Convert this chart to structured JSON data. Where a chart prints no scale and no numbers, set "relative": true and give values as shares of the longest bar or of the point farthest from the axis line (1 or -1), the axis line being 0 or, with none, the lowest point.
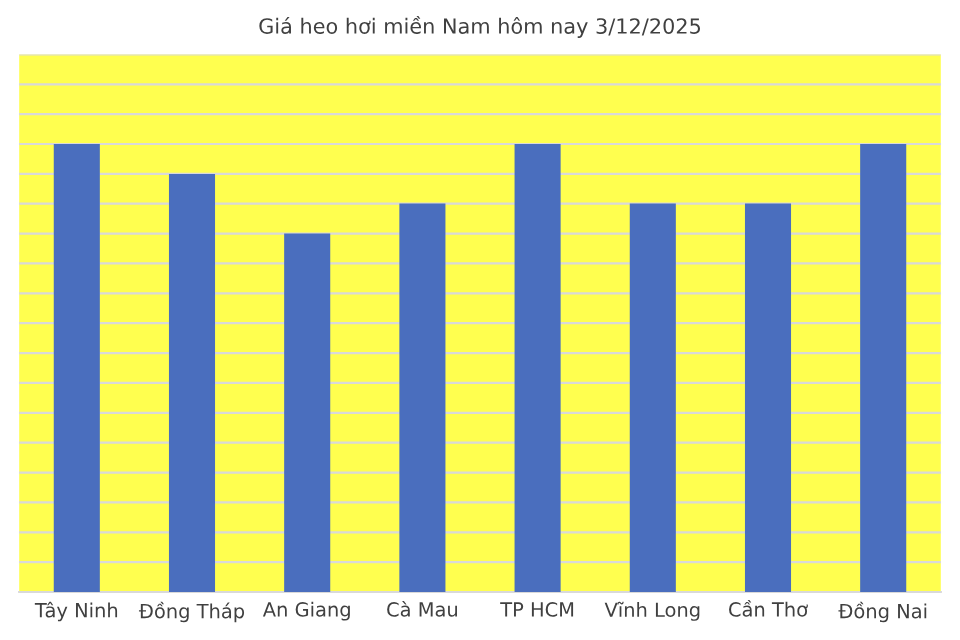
{
  "chart_data": {
    "type": "bar",
    "title": "Giá heo hơi miền Nam hôm nay 3/12/2025",
    "categories": [
      "Tây Ninh",
      "Đồng Tháp",
      "An Giang",
      "Cà Mau",
      "TP HCM",
      "Vĩnh Long",
      "Cần Thơ",
      "Đồng Nai"
    ],
    "values": [
      1,
      0.933,
      0.8,
      0.867,
      1,
      0.867,
      0.867,
      1
    ],
    "color": "#4a6ebe",
    "relative": true,
    "grid": "y",
    "legend": false
  }
}
